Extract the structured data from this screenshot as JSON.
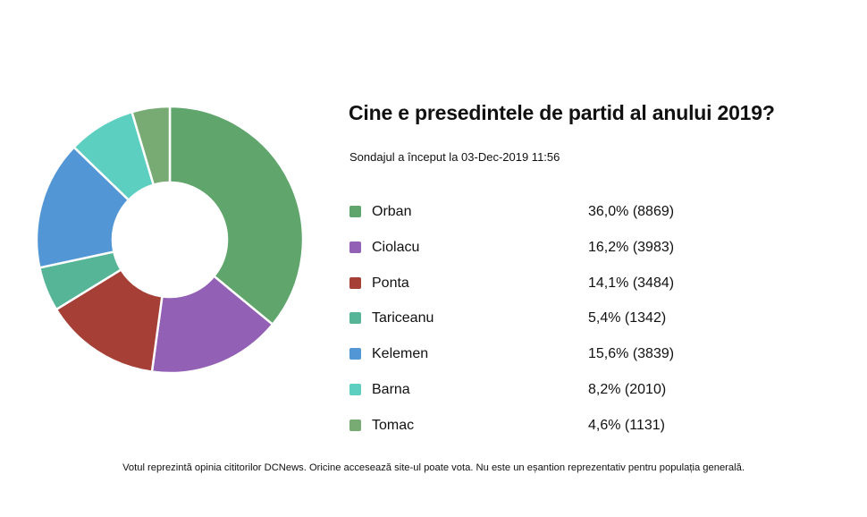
{
  "chart_data": {
    "type": "pie",
    "title": "Cine e presedintele de partid al anului 2019?",
    "subtitle": "Sondajul a început la 03-Dec-2019 11:56",
    "legend_position": "right",
    "slices": [
      {
        "label": "Orban",
        "percent": 36.0,
        "votes": 8869,
        "display": "36,0% (8869)",
        "color": "#5fa56c"
      },
      {
        "label": "Ciolacu",
        "percent": 16.2,
        "votes": 3983,
        "display": "16,2% (3983)",
        "color": "#9260b5"
      },
      {
        "label": "Ponta",
        "percent": 14.1,
        "votes": 3484,
        "display": "14,1% (3484)",
        "color": "#a63f36"
      },
      {
        "label": "Tariceanu",
        "percent": 5.4,
        "votes": 1342,
        "display": "5,4% (1342)",
        "color": "#57b597"
      },
      {
        "label": "Kelemen",
        "percent": 15.6,
        "votes": 3839,
        "display": "15,6% (3839)",
        "color": "#5396d5"
      },
      {
        "label": "Barna",
        "percent": 8.2,
        "votes": 2010,
        "display": "8,2% (2010)",
        "color": "#5ccfc0"
      },
      {
        "label": "Tomac",
        "percent": 4.6,
        "votes": 1131,
        "display": "4,6% (1131)",
        "color": "#78aa73"
      }
    ]
  },
  "footnote": "Votul reprezintă opinia cititorilor DCNews. Oricine accesează site-ul poate vota. Nu este un eșantion reprezentativ pentru populația generală."
}
